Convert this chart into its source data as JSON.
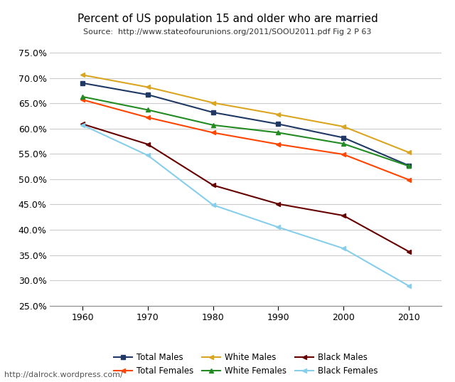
{
  "title": "Percent of US population 15 and older who are married",
  "subtitle": "Source:  http://www.stateofourunions.org/2011/SOOU2011.pdf Fig 2 P 63",
  "watermark": "http://dalrock.wordpress.com/",
  "years": [
    1960,
    1970,
    1980,
    1990,
    2000,
    2010
  ],
  "series": [
    {
      "name": "Total Males",
      "values": [
        0.69,
        0.667,
        0.632,
        0.609,
        0.582,
        0.527
      ],
      "color": "#1F3864",
      "marker": "s"
    },
    {
      "name": "Total Females",
      "values": [
        0.657,
        0.622,
        0.592,
        0.569,
        0.549,
        0.499
      ],
      "color": "#FF4500",
      "marker": "<"
    },
    {
      "name": "White Males",
      "values": [
        0.706,
        0.682,
        0.651,
        0.628,
        0.604,
        0.553
      ],
      "color": "#DAA520",
      "marker": "<"
    },
    {
      "name": "White Females",
      "values": [
        0.663,
        0.637,
        0.607,
        0.592,
        0.57,
        0.526
      ],
      "color": "#228B22",
      "marker": "^"
    },
    {
      "name": "Black Males",
      "values": [
        0.609,
        0.569,
        0.488,
        0.451,
        0.428,
        0.357
      ],
      "color": "#660000",
      "marker": "<"
    },
    {
      "name": "Black Females",
      "values": [
        0.607,
        0.547,
        0.449,
        0.405,
        0.363,
        0.289
      ],
      "color": "#87CEEB",
      "marker": "<"
    }
  ],
  "ylim": [
    0.25,
    0.775
  ],
  "yticks": [
    0.25,
    0.3,
    0.35,
    0.4,
    0.45,
    0.5,
    0.55,
    0.6,
    0.65,
    0.7,
    0.75
  ],
  "background_color": "#FFFFFF",
  "grid_color": "#CCCCCC",
  "figsize": [
    6.4,
    5.37
  ],
  "dpi": 100
}
